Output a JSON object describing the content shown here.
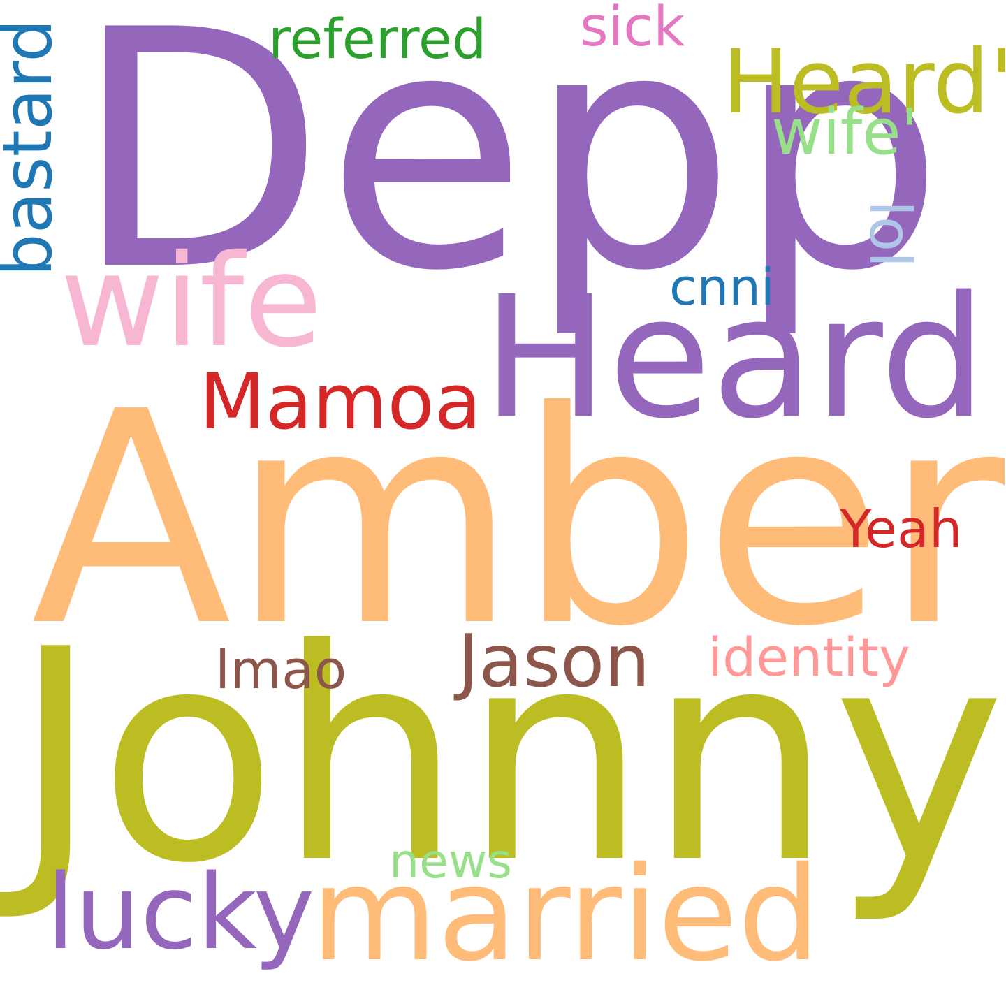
{
  "background_color": "#ffffff",
  "words": [
    {
      "text": "Depp",
      "color": "#9467bd"
    },
    {
      "text": "Heard",
      "color": "#9467bd"
    },
    {
      "text": "Amber",
      "color": "#ffbb78"
    },
    {
      "text": "Johnny",
      "color": "#bcbd22"
    },
    {
      "text": "wife",
      "color": "#f7b6d2"
    },
    {
      "text": "bastard",
      "color": "#1f77b4"
    },
    {
      "text": "referred",
      "color": "#2ca02c"
    },
    {
      "text": "sick",
      "color": "#e377c2"
    },
    {
      "text": "Heard'",
      "color": "#bcbd22"
    },
    {
      "text": "wife'",
      "color": "#98df8a"
    },
    {
      "text": "lol",
      "color": "#aec7e8"
    },
    {
      "text": "cnni",
      "color": "#1f77b4"
    },
    {
      "text": "Mamoa",
      "color": "#d62728"
    },
    {
      "text": "Yeah",
      "color": "#d62728"
    },
    {
      "text": "Jason",
      "color": "#8c564b"
    },
    {
      "text": "identity",
      "color": "#ff9896"
    },
    {
      "text": "lmao",
      "color": "#8c564b"
    },
    {
      "text": "news",
      "color": "#98df8a"
    },
    {
      "text": "lucky",
      "color": "#9467bd"
    },
    {
      "text": "married",
      "color": "#ffbb78"
    }
  ]
}
